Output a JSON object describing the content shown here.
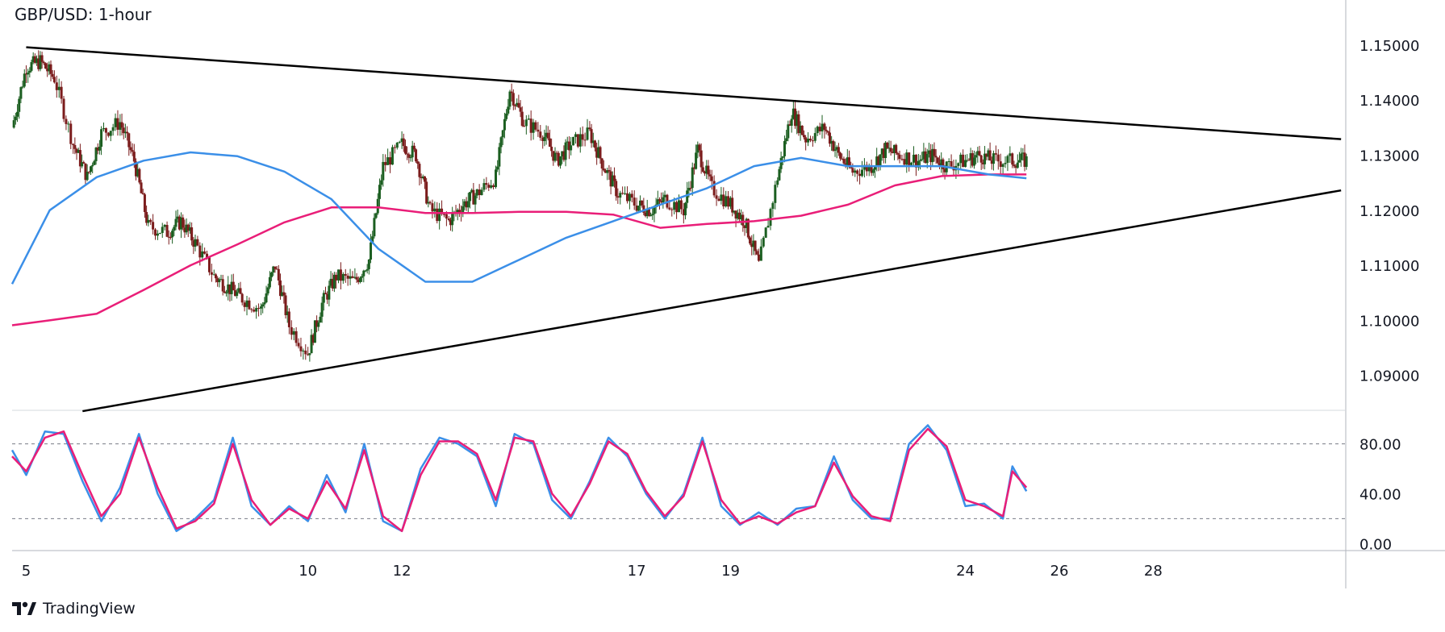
{
  "title": "GBP/USD: 1-hour",
  "brand": "TradingView",
  "colors": {
    "up": "#26a69a",
    "down": "#8b1a1a",
    "candle_up": "#1b5e20",
    "candle_down": "#7b1c1c",
    "sma_blue": "#3b8fe8",
    "sma_pink": "#e91e78",
    "trendline": "#000000",
    "stoch_k": "#3b8fe8",
    "stoch_d": "#e91e78",
    "grid": "#9e9e9e"
  },
  "chart_data": [
    {
      "type": "line",
      "panel": "price",
      "title": "GBP/USD: 1-hour",
      "x_ticks": [
        "5",
        "10",
        "12",
        "17",
        "19",
        "24",
        "26",
        "28"
      ],
      "x_tick_index": [
        4,
        10,
        12,
        17,
        19,
        24,
        26,
        28
      ],
      "y_ticks": [
        "1.15000",
        "1.14000",
        "1.13000",
        "1.12000",
        "1.11000",
        "1.10000",
        "1.09000"
      ],
      "ylim": [
        1.0838,
        1.1573
      ],
      "xlim": [
        3.7,
        32.1
      ],
      "close_series": {
        "x": [
          3.7,
          4.0,
          4.3,
          4.6,
          5.0,
          5.3,
          5.6,
          6.0,
          6.3,
          6.6,
          7.0,
          7.3,
          7.6,
          8.0,
          8.3,
          8.6,
          9.0,
          9.3,
          9.6,
          10.0,
          10.3,
          10.6,
          11.0,
          11.3,
          11.6,
          12.0,
          12.3,
          12.6,
          13.0,
          13.3,
          13.6,
          14.0,
          14.3,
          14.6,
          15.0,
          15.3,
          15.6,
          16.0,
          16.3,
          16.6,
          17.0,
          17.3,
          17.6,
          18.0,
          18.3,
          18.6,
          19.0,
          19.3,
          19.6,
          20.0,
          20.3,
          20.6,
          21.0,
          21.3,
          21.6,
          22.0,
          22.3,
          22.6,
          23.0,
          23.3,
          23.6,
          24.0,
          24.3,
          24.6,
          25.0,
          25.3
        ],
        "y": [
          1.135,
          1.146,
          1.147,
          1.144,
          1.132,
          1.126,
          1.134,
          1.136,
          1.129,
          1.117,
          1.116,
          1.118,
          1.114,
          1.108,
          1.106,
          1.104,
          1.102,
          1.11,
          1.099,
          1.094,
          1.103,
          1.108,
          1.107,
          1.111,
          1.128,
          1.132,
          1.13,
          1.12,
          1.118,
          1.121,
          1.123,
          1.126,
          1.142,
          1.136,
          1.134,
          1.129,
          1.132,
          1.134,
          1.128,
          1.123,
          1.121,
          1.12,
          1.122,
          1.12,
          1.131,
          1.124,
          1.121,
          1.118,
          1.11,
          1.126,
          1.138,
          1.133,
          1.135,
          1.13,
          1.127,
          1.128,
          1.131,
          1.13,
          1.129,
          1.13,
          1.128,
          1.129,
          1.13,
          1.129,
          1.129,
          1.129
        ]
      },
      "series": [
        {
          "name": "",
          "role": "sma-fast",
          "x": [
            3.7,
            4.5,
            5.5,
            6.5,
            7.5,
            8.5,
            9.5,
            10.5,
            11.5,
            12.5,
            13.5,
            14.5,
            15.5,
            16.5,
            17.5,
            18.5,
            19.5,
            20.5,
            21.5,
            22.5,
            23.5,
            24.5,
            25.3
          ],
          "y": [
            1.1066,
            1.12,
            1.126,
            1.129,
            1.1305,
            1.1298,
            1.127,
            1.122,
            1.113,
            1.107,
            1.107,
            1.111,
            1.115,
            1.118,
            1.121,
            1.124,
            1.128,
            1.1295,
            1.128,
            1.128,
            1.128,
            1.1265,
            1.1258
          ]
        },
        {
          "name": "",
          "role": "sma-slow",
          "x": [
            3.7,
            4.5,
            5.5,
            6.5,
            7.5,
            8.5,
            9.5,
            10.5,
            11.5,
            12.5,
            13.5,
            14.5,
            15.5,
            16.5,
            17.5,
            18.5,
            19.5,
            20.5,
            21.5,
            22.5,
            23.5,
            24.5,
            25.3
          ],
          "y": [
            1.0991,
            1.1,
            1.1012,
            1.1055,
            1.11,
            1.1138,
            1.1178,
            1.1205,
            1.1205,
            1.1195,
            1.1195,
            1.1197,
            1.1197,
            1.1192,
            1.1168,
            1.1175,
            1.118,
            1.119,
            1.121,
            1.1245,
            1.1262,
            1.1265,
            1.1265
          ]
        }
      ],
      "trendlines": [
        {
          "x": [
            4.0,
            32.0
          ],
          "y": [
            1.1496,
            1.1329
          ]
        },
        {
          "x": [
            5.2,
            32.0
          ],
          "y": [
            1.0835,
            1.1236
          ]
        }
      ]
    },
    {
      "type": "line",
      "panel": "oscillator",
      "y_ticks": [
        "80.00",
        "40.00",
        "0.00"
      ],
      "ylim": [
        -5,
        105
      ],
      "xlim": [
        3.7,
        32.1
      ],
      "levels": [
        80,
        20
      ],
      "series": [
        {
          "name": "",
          "role": "k",
          "x": [
            3.7,
            4.0,
            4.4,
            4.8,
            5.2,
            5.6,
            6.0,
            6.4,
            6.8,
            7.2,
            7.6,
            8.0,
            8.4,
            8.8,
            9.2,
            9.6,
            10.0,
            10.4,
            10.8,
            11.2,
            11.6,
            12.0,
            12.4,
            12.8,
            13.2,
            13.6,
            14.0,
            14.4,
            14.8,
            15.2,
            15.6,
            16.0,
            16.4,
            16.8,
            17.2,
            17.6,
            18.0,
            18.4,
            18.8,
            19.2,
            19.6,
            20.0,
            20.4,
            20.8,
            21.2,
            21.6,
            22.0,
            22.4,
            22.8,
            23.2,
            23.6,
            24.0,
            24.4,
            24.8,
            25.0,
            25.3
          ],
          "y": [
            75,
            55,
            90,
            88,
            50,
            18,
            45,
            88,
            40,
            10,
            20,
            35,
            85,
            30,
            15,
            30,
            18,
            55,
            25,
            80,
            18,
            10,
            60,
            85,
            80,
            70,
            30,
            88,
            80,
            35,
            20,
            50,
            85,
            70,
            40,
            20,
            40,
            85,
            30,
            15,
            25,
            15,
            28,
            30,
            70,
            35,
            20,
            20,
            80,
            95,
            75,
            30,
            32,
            20,
            62,
            42
          ]
        },
        {
          "name": "",
          "role": "d",
          "x": [
            3.7,
            4.0,
            4.4,
            4.8,
            5.2,
            5.6,
            6.0,
            6.4,
            6.8,
            7.2,
            7.6,
            8.0,
            8.4,
            8.8,
            9.2,
            9.6,
            10.0,
            10.4,
            10.8,
            11.2,
            11.6,
            12.0,
            12.4,
            12.8,
            13.2,
            13.6,
            14.0,
            14.4,
            14.8,
            15.2,
            15.6,
            16.0,
            16.4,
            16.8,
            17.2,
            17.6,
            18.0,
            18.4,
            18.8,
            19.2,
            19.6,
            20.0,
            20.4,
            20.8,
            21.2,
            21.6,
            22.0,
            22.4,
            22.8,
            23.2,
            23.6,
            24.0,
            24.4,
            24.8,
            25.0,
            25.3
          ],
          "y": [
            70,
            58,
            85,
            90,
            55,
            22,
            40,
            85,
            45,
            12,
            18,
            32,
            80,
            35,
            15,
            28,
            20,
            50,
            28,
            75,
            22,
            10,
            55,
            82,
            82,
            72,
            35,
            85,
            82,
            40,
            22,
            48,
            82,
            72,
            42,
            22,
            38,
            82,
            35,
            16,
            22,
            16,
            25,
            30,
            65,
            38,
            22,
            18,
            75,
            92,
            78,
            35,
            30,
            22,
            58,
            45
          ]
        }
      ]
    }
  ]
}
